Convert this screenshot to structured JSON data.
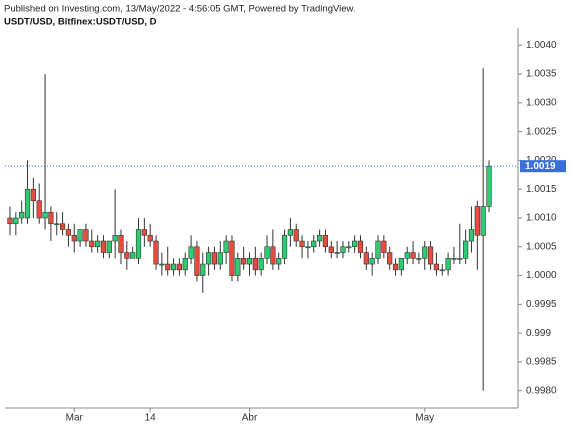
{
  "chart_data": {
    "type": "candlestick",
    "title": "Published on Investing.com, 13/May/2022 - 4:56:05 GMT, Powered by TradingView.",
    "subtitle": "USDT/USD, Bitfinex:USDT/USD, D",
    "categories": [
      null,
      null,
      null,
      null,
      null,
      null,
      null,
      null,
      null,
      null,
      null,
      "Mar",
      null,
      null,
      null,
      null,
      null,
      null,
      null,
      null,
      null,
      null,
      null,
      null,
      "14",
      null,
      null,
      null,
      null,
      null,
      null,
      null,
      null,
      null,
      null,
      null,
      null,
      null,
      null,
      null,
      null,
      "Abr",
      null,
      null,
      null,
      null,
      null,
      null,
      null,
      null,
      null,
      null,
      null,
      null,
      null,
      null,
      null,
      null,
      null,
      null,
      null,
      null,
      null,
      null,
      null,
      null,
      null,
      null,
      null,
      null,
      null,
      "May",
      null,
      null,
      null,
      null,
      null,
      null,
      null,
      null,
      null,
      null,
      null
    ],
    "open": [
      1.001,
      1.0009,
      1.001,
      1.001,
      1.0015,
      1.0013,
      1.001,
      1.0011,
      1.0009,
      1.0009,
      1.0008,
      1.0007,
      1.0006,
      1.0008,
      1.0006,
      1.0005,
      1.0006,
      1.0004,
      1.0006,
      1.0007,
      1.0004,
      1.0003,
      1.0003,
      1.0008,
      1.0007,
      1.0006,
      1.0002,
      1.0002,
      1.0001,
      1.0002,
      1.0001,
      1.0003,
      1.0005,
      1.0,
      1.0002,
      1.0004,
      1.0002,
      1.0004,
      1.0006,
      1.0,
      1.0003,
      1.0002,
      1.0003,
      1.0001,
      1.0003,
      1.0005,
      1.0002,
      1.0003,
      1.0007,
      1.0008,
      1.0006,
      1.0005,
      1.0005,
      1.0006,
      1.0007,
      1.0005,
      1.0004,
      1.0004,
      1.0005,
      1.0005,
      1.0006,
      1.0004,
      1.0002,
      1.0003,
      1.0006,
      1.0004,
      1.0002,
      1.0001,
      1.0003,
      1.0004,
      1.0003,
      1.0003,
      1.0005,
      1.0002,
      1.0001,
      1.0001,
      1.0003,
      1.0003,
      1.0003,
      1.0006,
      1.0012,
      1.0007,
      1.0012
    ],
    "high": [
      1.0012,
      1.0011,
      1.0013,
      1.002,
      1.0017,
      1.0016,
      1.0035,
      1.0012,
      1.0011,
      1.0011,
      1.0009,
      1.0009,
      1.0008,
      1.0009,
      1.0008,
      1.0007,
      1.0007,
      1.0006,
      1.0015,
      1.0008,
      1.0006,
      1.0005,
      1.001,
      1.001,
      1.0009,
      1.0007,
      1.0004,
      1.0005,
      1.0003,
      1.0003,
      1.0004,
      1.0007,
      1.0006,
      1.0004,
      1.0005,
      1.0005,
      1.0006,
      1.0007,
      1.0007,
      1.0004,
      1.0005,
      1.0004,
      1.0005,
      1.0004,
      1.0007,
      1.0008,
      1.0004,
      1.0008,
      1.001,
      1.0009,
      1.0007,
      1.0006,
      1.0007,
      1.0008,
      1.0008,
      1.0006,
      1.0006,
      1.0006,
      1.0006,
      1.0007,
      1.0007,
      1.0005,
      1.0004,
      1.0007,
      1.0007,
      1.0005,
      1.0003,
      1.0003,
      1.0005,
      1.0006,
      1.0004,
      1.0006,
      1.0006,
      1.0004,
      1.0002,
      1.0004,
      1.0005,
      1.0009,
      1.0008,
      1.0012,
      1.0013,
      1.0036,
      1.002
    ],
    "low": [
      1.0007,
      1.0007,
      1.0009,
      1.0009,
      1.001,
      1.0009,
      1.0008,
      1.0006,
      1.0007,
      1.0007,
      1.0005,
      1.0004,
      1.0005,
      1.0005,
      1.0004,
      1.0004,
      1.0003,
      1.0003,
      1.0003,
      1.0002,
      1.0001,
      1.0003,
      1.0002,
      1.0005,
      1.0005,
      1.0001,
      1.0,
      1.0,
      1.0,
      1.0,
      1.0,
      1.0002,
      0.9999,
      0.9997,
      1.0,
      1.0001,
      1.0001,
      1.0002,
      0.9999,
      0.9999,
      1.0001,
      1.0,
      1.0,
      1.0,
      1.0002,
      1.0001,
      1.0001,
      1.0002,
      1.0005,
      1.0005,
      1.0003,
      1.0003,
      1.0004,
      1.0005,
      1.0004,
      1.0003,
      1.0003,
      1.0003,
      1.0004,
      1.0004,
      1.0003,
      1.0001,
      1.0,
      1.0002,
      1.0003,
      1.0001,
      1.0,
      1.0,
      1.0002,
      1.0002,
      1.0002,
      1.0001,
      1.0001,
      1.0,
      1.0,
      1.0,
      1.0002,
      1.0002,
      1.0002,
      1.0004,
      1.0001,
      0.998,
      1.0011
    ],
    "close": [
      1.0009,
      1.001,
      1.0011,
      1.0015,
      1.0013,
      1.001,
      1.0011,
      1.0009,
      1.0009,
      1.0008,
      1.0007,
      1.0006,
      1.0008,
      1.0006,
      1.0005,
      1.0006,
      1.0004,
      1.0006,
      1.0007,
      1.0004,
      1.0003,
      1.0004,
      1.0008,
      1.0007,
      1.0006,
      1.0002,
      1.0002,
      1.0001,
      1.0002,
      1.0001,
      1.0003,
      1.0005,
      1.0,
      1.0002,
      1.0004,
      1.0002,
      1.0004,
      1.0006,
      1.0,
      1.0003,
      1.0002,
      1.0003,
      1.0001,
      1.0003,
      1.0005,
      1.0002,
      1.0003,
      1.0007,
      1.0008,
      1.0006,
      1.0005,
      1.0005,
      1.0006,
      1.0007,
      1.0005,
      1.0004,
      1.0004,
      1.0005,
      1.0005,
      1.0006,
      1.0004,
      1.0002,
      1.0003,
      1.0006,
      1.0004,
      1.0002,
      1.0001,
      1.0003,
      1.0004,
      1.0003,
      1.0003,
      1.0005,
      1.0002,
      1.0001,
      1.0001,
      1.0003,
      1.0003,
      1.0003,
      1.0006,
      1.0008,
      1.0007,
      1.0012,
      1.0019
    ],
    "up_color": "#2ecc71",
    "down_color": "#e74c3c",
    "last_price_color": "#3a6fd8",
    "ylim": [
      0.9977,
      1.0043
    ],
    "yticks": [
      {
        "value": 0.998,
        "label": "0.9980"
      },
      0.9985,
      0.999,
      0.9995,
      {
        "value": 1.0,
        "label": "1.0000"
      },
      1.0005,
      {
        "value": 1.001,
        "label": "1.0010"
      },
      1.0015,
      {
        "value": 1.002,
        "label": "1.0020"
      },
      1.0025,
      {
        "value": 1.003,
        "label": "1.0030"
      },
      1.0035,
      {
        "value": 1.004,
        "label": "1.0040"
      }
    ]
  }
}
